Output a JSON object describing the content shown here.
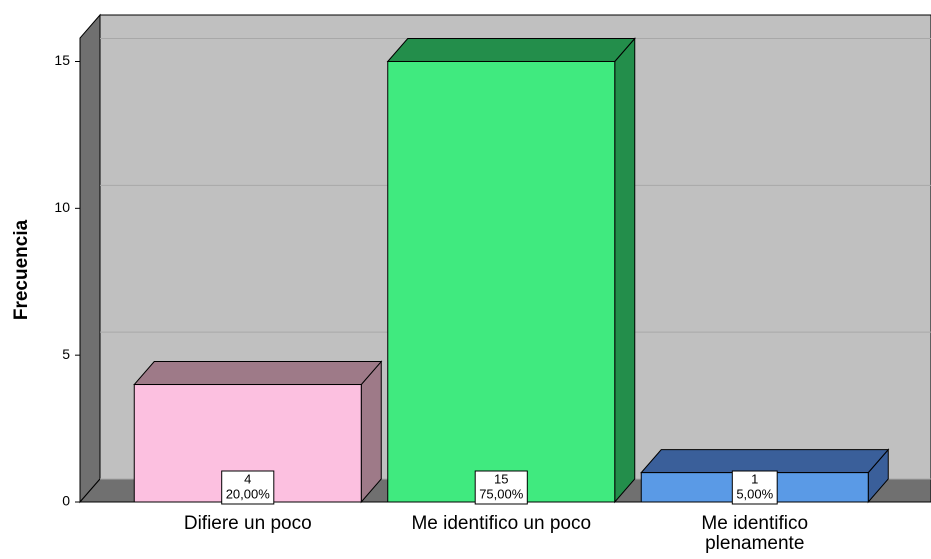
{
  "chart_data": {
    "type": "bar3d",
    "y_label": "Frecuencia",
    "categories": [
      "Difiere un poco",
      "Me identifico un poco",
      "Me identifico plenamente"
    ],
    "values": [
      4,
      15,
      1
    ],
    "percent_values": [
      20,
      75,
      5
    ],
    "percent_labels": [
      "20,00%",
      "75,00%",
      "5,00%"
    ],
    "colors": [
      "#fcc0e0",
      "#40ea7f",
      "#5a9ae6"
    ],
    "side_colors": [
      "#9e7a88",
      "#238e4b",
      "#3a5f9a"
    ],
    "ylim": [
      0,
      15.8
    ],
    "yticks": [
      0,
      5,
      10,
      15
    ],
    "grid": true
  }
}
